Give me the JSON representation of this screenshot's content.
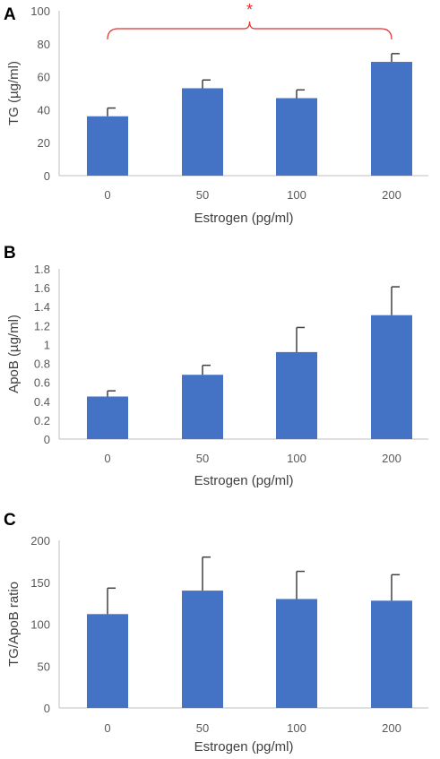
{
  "chart_data": [
    {
      "panel": "A",
      "type": "bar",
      "categories": [
        "0",
        "50",
        "100",
        "200"
      ],
      "values": [
        36,
        53,
        47,
        69
      ],
      "errors": [
        5,
        5,
        5,
        5
      ],
      "xlabel": "Estrogen (pg/ml)",
      "ylabel": "TG (µg/ml)",
      "ylim": [
        0,
        100
      ],
      "yticks": [
        "0",
        "20",
        "40",
        "60",
        "80",
        "100"
      ],
      "annotation": "*",
      "bar_color": "#4472c4"
    },
    {
      "panel": "B",
      "type": "bar",
      "categories": [
        "0",
        "50",
        "100",
        "200"
      ],
      "values": [
        0.45,
        0.68,
        0.92,
        1.31
      ],
      "errors": [
        0.06,
        0.1,
        0.26,
        0.3
      ],
      "xlabel": "Estrogen (pg/ml)",
      "ylabel": "ApoB (µg/ml)",
      "ylim": [
        0,
        1.8
      ],
      "yticks": [
        "0",
        "0.2",
        "0.4",
        "0.6",
        "0.8",
        "1",
        "1.2",
        "1.4",
        "1.6",
        "1.8"
      ],
      "bar_color": "#4472c4"
    },
    {
      "panel": "C",
      "type": "bar",
      "categories": [
        "0",
        "50",
        "100",
        "200"
      ],
      "values": [
        112,
        140,
        130,
        128
      ],
      "errors": [
        31,
        40,
        33,
        31
      ],
      "xlabel": "Estrogen (pg/ml)",
      "ylabel": "TG/ApoB ratio",
      "ylim": [
        0,
        200
      ],
      "yticks": [
        "0",
        "50",
        "100",
        "150",
        "200"
      ],
      "bar_color": "#4472c4"
    }
  ]
}
